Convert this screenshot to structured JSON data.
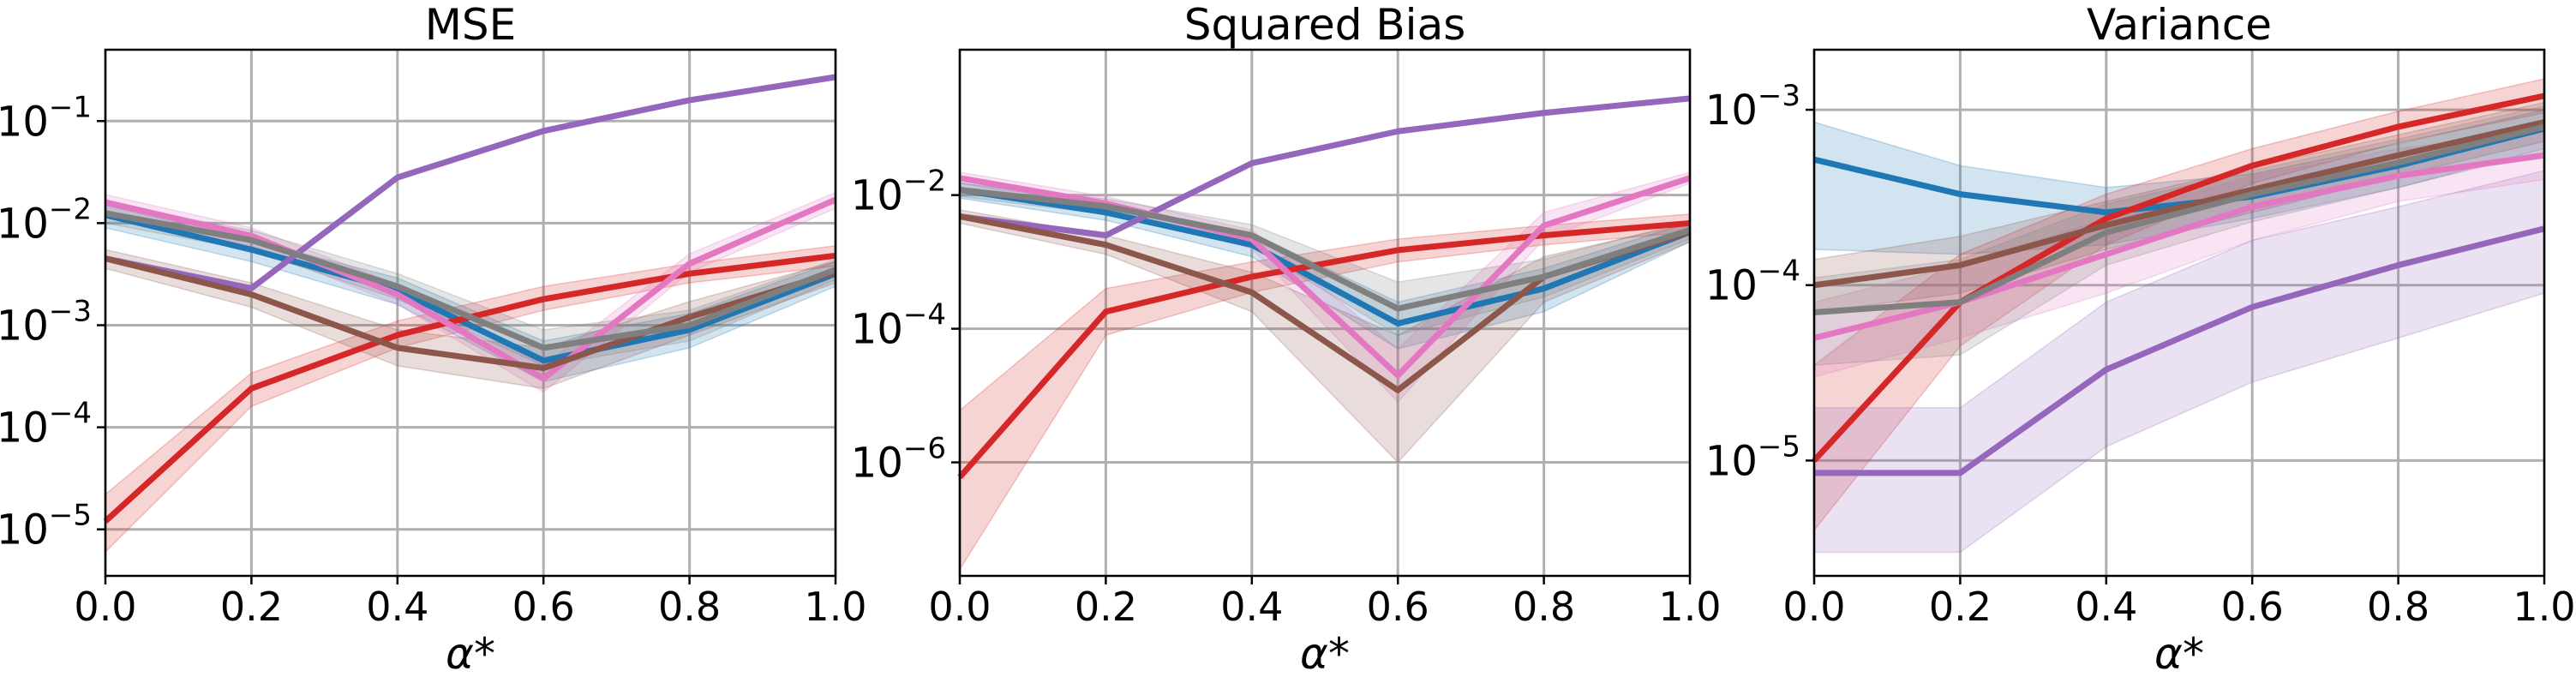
{
  "chart_data": [
    {
      "type": "line",
      "title": "MSE",
      "xlabel": "α*",
      "ylabel": "",
      "yscale": "log",
      "grid": true,
      "x": [
        0.0,
        0.2,
        0.4,
        0.6,
        0.8,
        1.0
      ],
      "xticks": [
        "0.0",
        "0.2",
        "0.4",
        "0.6",
        "0.8",
        "1.0"
      ],
      "ylim": [
        3.5e-06,
        0.5
      ],
      "yticks": [
        {
          "value": 1e-05,
          "base": "10",
          "exp": "−5"
        },
        {
          "value": 0.0001,
          "base": "10",
          "exp": "−4"
        },
        {
          "value": 0.001,
          "base": "10",
          "exp": "−3"
        },
        {
          "value": 0.01,
          "base": "10",
          "exp": "−2"
        },
        {
          "value": 0.1,
          "base": "10",
          "exp": "−1"
        }
      ],
      "series": [
        {
          "color": "#1f77b4",
          "values": [
            0.012,
            0.0055,
            0.0022,
            0.00045,
            0.0009,
            0.0032
          ],
          "band": [
            [
              0.009,
              0.015
            ],
            [
              0.0042,
              0.0068
            ],
            [
              0.0016,
              0.0029
            ],
            [
              0.00028,
              0.0007
            ],
            [
              0.0006,
              0.0013
            ],
            [
              0.0024,
              0.0042
            ]
          ]
        },
        {
          "color": "#d62728",
          "values": [
            1.2e-05,
            0.00024,
            0.0008,
            0.0018,
            0.0032,
            0.0048
          ],
          "band": [
            [
              6e-06,
              2.2e-05
            ],
            [
              0.00016,
              0.00034
            ],
            [
              0.0006,
              0.0011
            ],
            [
              0.0014,
              0.0024
            ],
            [
              0.0026,
              0.004
            ],
            [
              0.0038,
              0.006
            ]
          ]
        },
        {
          "color": "#9467bd",
          "values": [
            0.0045,
            0.0023,
            0.028,
            0.08,
            0.16,
            0.27
          ]
        },
        {
          "color": "#e377c2",
          "values": [
            0.016,
            0.0075,
            0.002,
            0.0003,
            0.004,
            0.017
          ],
          "band": [
            [
              0.013,
              0.019
            ],
            [
              0.006,
              0.009
            ],
            [
              0.0016,
              0.0025
            ],
            [
              0.00022,
              0.0004
            ],
            [
              0.0033,
              0.005
            ],
            [
              0.014,
              0.02
            ]
          ]
        },
        {
          "color": "#8c564b",
          "values": [
            0.0045,
            0.002,
            0.0006,
            0.00038,
            0.0012,
            0.0033
          ],
          "band": [
            [
              0.0036,
              0.0055
            ],
            [
              0.0015,
              0.0026
            ],
            [
              0.0004,
              0.0009
            ],
            [
              0.00024,
              0.0006
            ],
            [
              0.0008,
              0.0017
            ],
            [
              0.0026,
              0.0042
            ]
          ]
        },
        {
          "color": "#7f7f7f",
          "values": [
            0.0125,
            0.0068,
            0.0024,
            0.0006,
            0.001,
            0.0035
          ],
          "band": [
            [
              0.01,
              0.0155
            ],
            [
              0.0054,
              0.0085
            ],
            [
              0.0018,
              0.0032
            ],
            [
              0.0004,
              0.0009
            ],
            [
              0.0007,
              0.0014
            ],
            [
              0.0028,
              0.0044
            ]
          ]
        }
      ]
    },
    {
      "type": "line",
      "title": "Squared Bias",
      "xlabel": "α*",
      "ylabel": "",
      "yscale": "log",
      "grid": true,
      "x": [
        0.0,
        0.2,
        0.4,
        0.6,
        0.8,
        1.0
      ],
      "xticks": [
        "0.0",
        "0.2",
        "0.4",
        "0.6",
        "0.8",
        "1.0"
      ],
      "ylim": [
        2e-08,
        1.5
      ],
      "yticks": [
        {
          "value": 1e-06,
          "base": "10",
          "exp": "−6"
        },
        {
          "value": 0.0001,
          "base": "10",
          "exp": "−4"
        },
        {
          "value": 0.01,
          "base": "10",
          "exp": "−2"
        }
      ],
      "series": [
        {
          "color": "#1f77b4",
          "values": [
            0.012,
            0.0055,
            0.0018,
            0.00012,
            0.0004,
            0.0028
          ],
          "band": [
            [
              0.009,
              0.0155
            ],
            [
              0.0042,
              0.0072
            ],
            [
              0.0012,
              0.0027
            ],
            [
              5e-05,
              0.00025
            ],
            [
              0.00018,
              0.0008
            ],
            [
              0.002,
              0.0039
            ]
          ]
        },
        {
          "color": "#d62728",
          "values": [
            6e-07,
            0.00018,
            0.0006,
            0.0015,
            0.0025,
            0.0038
          ],
          "band": [
            [
              2.5e-08,
              6e-06
            ],
            [
              8e-05,
              0.0004
            ],
            [
              0.00035,
              0.001
            ],
            [
              0.001,
              0.0022
            ],
            [
              0.0018,
              0.0035
            ],
            [
              0.0028,
              0.0052
            ]
          ]
        },
        {
          "color": "#9467bd",
          "values": [
            0.0048,
            0.0025,
            0.03,
            0.09,
            0.17,
            0.28
          ]
        },
        {
          "color": "#e377c2",
          "values": [
            0.018,
            0.0075,
            0.0022,
            2e-05,
            0.0035,
            0.018
          ],
          "band": [
            [
              0.015,
              0.022
            ],
            [
              0.006,
              0.0095
            ],
            [
              0.0016,
              0.003
            ],
            [
              8e-06,
              5e-05
            ],
            [
              0.0022,
              0.0055
            ],
            [
              0.015,
              0.022
            ]
          ]
        },
        {
          "color": "#8c564b",
          "values": [
            0.0048,
            0.0018,
            0.00035,
            1.2e-05,
            0.0006,
            0.0028
          ],
          "band": [
            [
              0.0038,
              0.006
            ],
            [
              0.0013,
              0.0025
            ],
            [
              0.00018,
              0.0007
            ],
            [
              1e-06,
              8e-05
            ],
            [
              0.00025,
              0.0012
            ],
            [
              0.002,
              0.0038
            ]
          ]
        },
        {
          "color": "#7f7f7f",
          "values": [
            0.012,
            0.0068,
            0.0025,
            0.0002,
            0.0006,
            0.003
          ],
          "band": [
            [
              0.0095,
              0.015
            ],
            [
              0.0052,
              0.0088
            ],
            [
              0.0017,
              0.0036
            ],
            [
              8e-05,
              0.0005
            ],
            [
              0.0003,
              0.0011
            ],
            [
              0.0022,
              0.0041
            ]
          ]
        }
      ]
    },
    {
      "type": "line",
      "title": "Variance",
      "xlabel": "α*",
      "ylabel": "",
      "yscale": "log",
      "grid": true,
      "x": [
        0.0,
        0.2,
        0.4,
        0.6,
        0.8,
        1.0
      ],
      "xticks": [
        "0.0",
        "0.2",
        "0.4",
        "0.6",
        "0.8",
        "1.0"
      ],
      "ylim": [
        2.2e-06,
        0.0022
      ],
      "yticks": [
        {
          "value": 1e-05,
          "base": "10",
          "exp": "−5"
        },
        {
          "value": 0.0001,
          "base": "10",
          "exp": "−4"
        },
        {
          "value": 0.001,
          "base": "10",
          "exp": "−3"
        }
      ],
      "series": [
        {
          "color": "#1f77b4",
          "values": [
            0.00052,
            0.00033,
            0.00026,
            0.00032,
            0.00048,
            0.00078
          ],
          "band": [
            [
              0.00016,
              0.00085
            ],
            [
              0.00015,
              0.00048
            ],
            [
              0.00017,
              0.00036
            ],
            [
              0.00024,
              0.00043
            ],
            [
              0.00036,
              0.00064
            ],
            [
              0.0006,
              0.001
            ]
          ]
        },
        {
          "color": "#d62728",
          "values": [
            1e-05,
            8e-05,
            0.00024,
            0.00048,
            0.0008,
            0.0012
          ],
          "band": [
            [
              4e-06,
              3.5e-05
            ],
            [
              4.5e-05,
              0.00015
            ],
            [
              0.00017,
              0.00033
            ],
            [
              0.00038,
              0.0006
            ],
            [
              0.00065,
              0.00098
            ],
            [
              0.00096,
              0.0015
            ]
          ]
        },
        {
          "color": "#9467bd",
          "values": [
            8.5e-06,
            8.5e-06,
            3.3e-05,
            7.5e-05,
            0.00013,
            0.00021
          ],
          "band": [
            [
              3e-06,
              2e-05
            ],
            [
              3e-06,
              2e-05
            ],
            [
              1.2e-05,
              8e-05
            ],
            [
              2.8e-05,
              0.00018
            ],
            [
              5e-05,
              0.00028
            ],
            [
              9e-05,
              0.00045
            ]
          ]
        },
        {
          "color": "#e377c2",
          "values": [
            5e-05,
            8e-05,
            0.00015,
            0.00028,
            0.00042,
            0.00055
          ],
          "band": [
            [
              3e-05,
              8e-05
            ],
            [
              5e-05,
              0.00013
            ],
            [
              9e-05,
              0.00024
            ],
            [
              0.00018,
              0.00042
            ],
            [
              0.0003,
              0.0006
            ],
            [
              0.0004,
              0.00075
            ]
          ]
        },
        {
          "color": "#8c564b",
          "values": [
            0.0001,
            0.00013,
            0.00022,
            0.00035,
            0.00055,
            0.00085
          ],
          "band": [
            [
              7e-05,
              0.00014
            ],
            [
              9e-05,
              0.00019
            ],
            [
              0.00016,
              0.0003
            ],
            [
              0.00026,
              0.00047
            ],
            [
              0.00042,
              0.00072
            ],
            [
              0.00066,
              0.0011
            ]
          ]
        },
        {
          "color": "#7f7f7f",
          "values": [
            7e-05,
            8e-05,
            0.0002,
            0.00033,
            0.0005,
            0.0008
          ],
          "band": [
            [
              3.5e-05,
              0.00011
            ],
            [
              4e-05,
              0.00014
            ],
            [
              0.00013,
              0.00029
            ],
            [
              0.00023,
              0.00045
            ],
            [
              0.00036,
              0.00068
            ],
            [
              0.00058,
              0.00105
            ]
          ]
        }
      ]
    }
  ]
}
